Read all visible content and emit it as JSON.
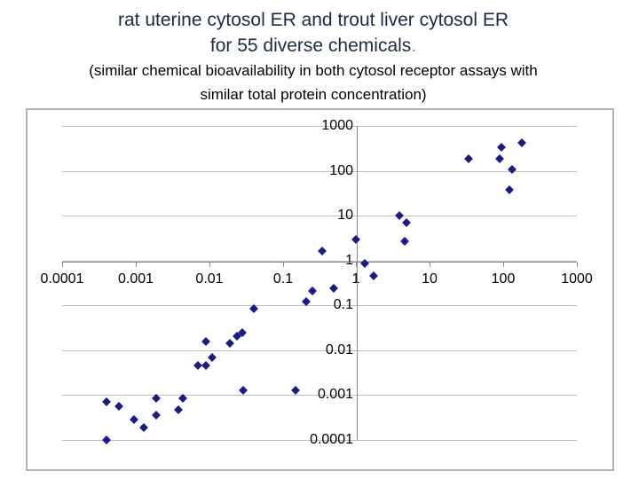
{
  "title": {
    "line1": "rat uterine cytosol ER and trout liver cytosol ER",
    "line2": "for 55 diverse chemicals",
    "line2_period": ".",
    "subtitle_line1": "(similar chemical bioavailability in both cytosol receptor assays with",
    "subtitle_line2": "similar total protein concentration)"
  },
  "colors": {
    "background": "#ffffff",
    "title_text": "#1c2b45",
    "subtitle_text": "#000000",
    "period": "#c87d5a",
    "marker": "#1a1a8c",
    "gridline": "#bdbdbd",
    "axis_line": "#8c8c8c",
    "chart_border": "#b3b3b3"
  },
  "chart_data": {
    "type": "scatter",
    "title": "rat uterine cytosol ER and trout liver cytosol ER for 55 diverse chemicals",
    "xlabel": "",
    "ylabel": "",
    "x_scale": "log",
    "y_scale": "log",
    "x_range": [
      0.0001,
      1000
    ],
    "y_range": [
      0.0001,
      1000
    ],
    "x_ticks": [
      "0.0001",
      "0.001",
      "0.01",
      "0.1",
      "1",
      "10",
      "100",
      "1000"
    ],
    "y_ticks": [
      "1000",
      "100",
      "10",
      "1",
      "0.1",
      "0.01",
      "0.001",
      "0.0001"
    ],
    "grid": "horizontal-only",
    "legend": "none",
    "marker_shape": "diamond",
    "points": [
      [
        0.0004,
        0.0007
      ],
      [
        0.0004,
        0.0001
      ],
      [
        0.0006,
        0.00056
      ],
      [
        0.00095,
        0.00028
      ],
      [
        0.0013,
        0.00019
      ],
      [
        0.0019,
        0.00085
      ],
      [
        0.0019,
        0.00036
      ],
      [
        0.0038,
        0.00047
      ],
      [
        0.0044,
        0.00085
      ],
      [
        0.007,
        0.0046
      ],
      [
        0.009,
        0.016
      ],
      [
        0.009,
        0.0046
      ],
      [
        0.011,
        0.007
      ],
      [
        0.019,
        0.014
      ],
      [
        0.024,
        0.021
      ],
      [
        0.028,
        0.025
      ],
      [
        0.029,
        0.0013
      ],
      [
        0.04,
        0.085
      ],
      [
        0.15,
        0.0013
      ],
      [
        0.21,
        0.12
      ],
      [
        0.25,
        0.21
      ],
      [
        0.34,
        1.6
      ],
      [
        0.5,
        0.24
      ],
      [
        1.0,
        2.9
      ],
      [
        1.3,
        0.86
      ],
      [
        1.7,
        0.45
      ],
      [
        3.9,
        10
      ],
      [
        4.6,
        2.7
      ],
      [
        4.8,
        7
      ],
      [
        34,
        185
      ],
      [
        90,
        185
      ],
      [
        94,
        335
      ],
      [
        120,
        38
      ],
      [
        130,
        107
      ],
      [
        180,
        420
      ]
    ]
  }
}
